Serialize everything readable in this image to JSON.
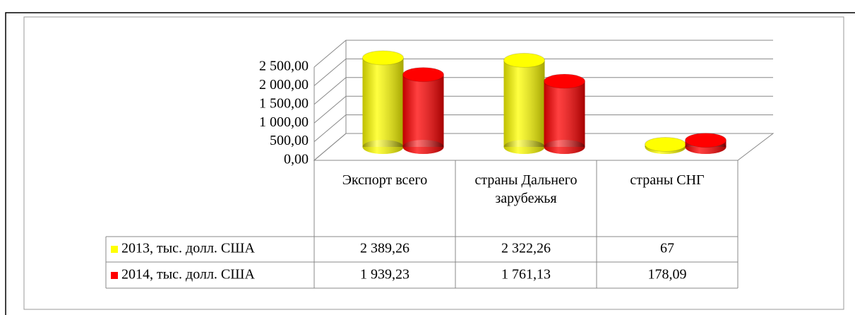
{
  "chart_data": {
    "type": "bar3d",
    "categories": [
      "Экспорт всего",
      "страны Дальнего зарубежья",
      "страны СНГ"
    ],
    "series": [
      {
        "name": "2013, тыс. долл. США",
        "color": "#ffff00",
        "values": [
          2389.26,
          2322.26,
          67
        ],
        "value_labels": [
          "2 389,26",
          "2 322,26",
          "67"
        ]
      },
      {
        "name": "2014, тыс. долл. США",
        "color": "#ff0000",
        "values": [
          1939.23,
          1761.13,
          178.09
        ],
        "value_labels": [
          "1 939,23",
          "1 761,13",
          "178,09"
        ]
      }
    ],
    "ylim": [
      0,
      2500
    ],
    "yticks": [
      {
        "value": 0,
        "label": "0,00"
      },
      {
        "value": 500,
        "label": "500,00"
      },
      {
        "value": 1000,
        "label": "1 000,00"
      },
      {
        "value": 1500,
        "label": "1 500,00"
      },
      {
        "value": 2000,
        "label": "2 000,00"
      },
      {
        "value": 2500,
        "label": "2 500,00"
      }
    ],
    "grid": true,
    "data_table": true
  }
}
